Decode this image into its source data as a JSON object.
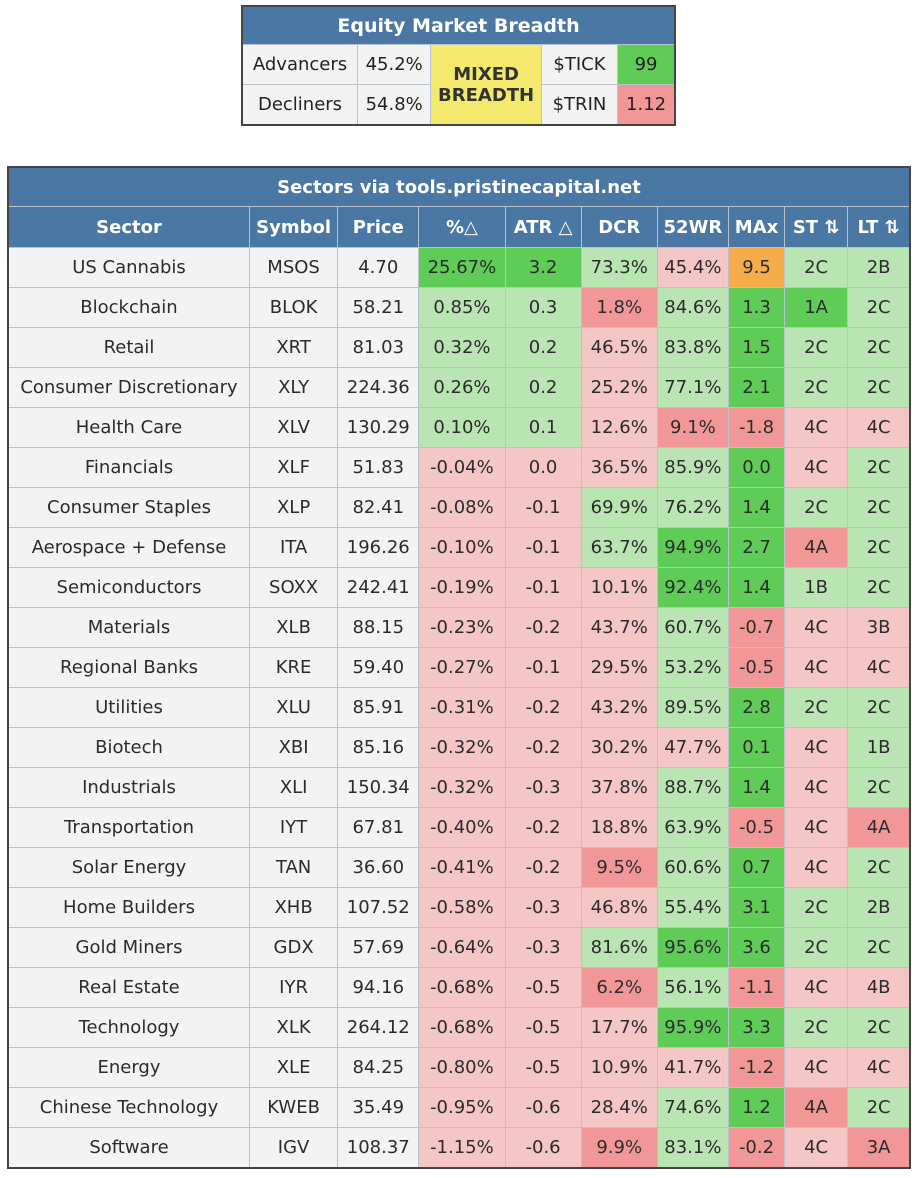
{
  "colors": {
    "header_bg": "#4a77a3",
    "header_text": "#ffffff",
    "neutral_cell": "#f3f3f3",
    "light_green": "#b9e5b3",
    "bright_green": "#5fcc58",
    "light_red": "#f4c6c6",
    "red": "#f29797",
    "orange": "#f5ad49",
    "mixed_yellow": "#f2e96e"
  },
  "breadth": {
    "title": "Equity Market Breadth",
    "advancers_label": "Advancers",
    "advancers_value": "45.2%",
    "decliners_label": "Decliners",
    "decliners_value": "54.8%",
    "badge_line1": "MIXED",
    "badge_line2": "BREADTH",
    "tick_label": "$TICK",
    "tick_value": "99",
    "tick_color": "#5fcc58",
    "trin_label": "$TRIN",
    "trin_value": "1.12",
    "trin_color": "#f29797"
  },
  "sectors": {
    "title": "Sectors via tools.pristinecapital.net",
    "columns": [
      "Sector",
      "Symbol",
      "Price",
      "%△",
      "ATR △",
      "DCR",
      "52WR",
      "MAx",
      "ST ⇅",
      "LT ⇅"
    ],
    "rows": [
      {
        "sector": "US Cannabis",
        "symbol": "MSOS",
        "price": "4.70",
        "pct": "25.67%",
        "atr": "3.2",
        "dcr": "73.3%",
        "wr52": "45.4%",
        "max": "9.5",
        "st": "2C",
        "lt": "2B",
        "c": [
          "bg",
          "bg",
          "lg",
          "lr",
          "o",
          "lg",
          "lg"
        ]
      },
      {
        "sector": "Blockchain",
        "symbol": "BLOK",
        "price": "58.21",
        "pct": "0.85%",
        "atr": "0.3",
        "dcr": "1.8%",
        "wr52": "84.6%",
        "max": "1.3",
        "st": "1A",
        "lt": "2C",
        "c": [
          "lg",
          "lg",
          "r",
          "lg",
          "bg",
          "bg",
          "lg"
        ]
      },
      {
        "sector": "Retail",
        "symbol": "XRT",
        "price": "81.03",
        "pct": "0.32%",
        "atr": "0.2",
        "dcr": "46.5%",
        "wr52": "83.8%",
        "max": "1.5",
        "st": "2C",
        "lt": "2C",
        "c": [
          "lg",
          "lg",
          "lr",
          "lg",
          "bg",
          "lg",
          "lg"
        ]
      },
      {
        "sector": "Consumer Discretionary",
        "symbol": "XLY",
        "price": "224.36",
        "pct": "0.26%",
        "atr": "0.2",
        "dcr": "25.2%",
        "wr52": "77.1%",
        "max": "2.1",
        "st": "2C",
        "lt": "2C",
        "c": [
          "lg",
          "lg",
          "lr",
          "lg",
          "bg",
          "lg",
          "lg"
        ]
      },
      {
        "sector": "Health Care",
        "symbol": "XLV",
        "price": "130.29",
        "pct": "0.10%",
        "atr": "0.1",
        "dcr": "12.6%",
        "wr52": "9.1%",
        "max": "-1.8",
        "st": "4C",
        "lt": "4C",
        "c": [
          "lg",
          "lg",
          "lr",
          "r",
          "r",
          "lr",
          "lr"
        ]
      },
      {
        "sector": "Financials",
        "symbol": "XLF",
        "price": "51.83",
        "pct": "-0.04%",
        "atr": "0.0",
        "dcr": "36.5%",
        "wr52": "85.9%",
        "max": "0.0",
        "st": "4C",
        "lt": "2C",
        "c": [
          "lr",
          "lr",
          "lr",
          "lg",
          "bg",
          "lr",
          "lg"
        ]
      },
      {
        "sector": "Consumer Staples",
        "symbol": "XLP",
        "price": "82.41",
        "pct": "-0.08%",
        "atr": "-0.1",
        "dcr": "69.9%",
        "wr52": "76.2%",
        "max": "1.4",
        "st": "2C",
        "lt": "2C",
        "c": [
          "lr",
          "lr",
          "lg",
          "lg",
          "bg",
          "lg",
          "lg"
        ]
      },
      {
        "sector": "Aerospace + Defense",
        "symbol": "ITA",
        "price": "196.26",
        "pct": "-0.10%",
        "atr": "-0.1",
        "dcr": "63.7%",
        "wr52": "94.9%",
        "max": "2.7",
        "st": "4A",
        "lt": "2C",
        "c": [
          "lr",
          "lr",
          "lg",
          "bg",
          "bg",
          "r",
          "lg"
        ]
      },
      {
        "sector": "Semiconductors",
        "symbol": "SOXX",
        "price": "242.41",
        "pct": "-0.19%",
        "atr": "-0.1",
        "dcr": "10.1%",
        "wr52": "92.4%",
        "max": "1.4",
        "st": "1B",
        "lt": "2C",
        "c": [
          "lr",
          "lr",
          "lr",
          "bg",
          "bg",
          "lg",
          "lg"
        ]
      },
      {
        "sector": "Materials",
        "symbol": "XLB",
        "price": "88.15",
        "pct": "-0.23%",
        "atr": "-0.2",
        "dcr": "43.7%",
        "wr52": "60.7%",
        "max": "-0.7",
        "st": "4C",
        "lt": "3B",
        "c": [
          "lr",
          "lr",
          "lr",
          "lg",
          "r",
          "lr",
          "lr"
        ]
      },
      {
        "sector": "Regional Banks",
        "symbol": "KRE",
        "price": "59.40",
        "pct": "-0.27%",
        "atr": "-0.1",
        "dcr": "29.5%",
        "wr52": "53.2%",
        "max": "-0.5",
        "st": "4C",
        "lt": "4C",
        "c": [
          "lr",
          "lr",
          "lr",
          "lg",
          "r",
          "lr",
          "lr"
        ]
      },
      {
        "sector": "Utilities",
        "symbol": "XLU",
        "price": "85.91",
        "pct": "-0.31%",
        "atr": "-0.2",
        "dcr": "43.2%",
        "wr52": "89.5%",
        "max": "2.8",
        "st": "2C",
        "lt": "2C",
        "c": [
          "lr",
          "lr",
          "lr",
          "lg",
          "bg",
          "lg",
          "lg"
        ]
      },
      {
        "sector": "Biotech",
        "symbol": "XBI",
        "price": "85.16",
        "pct": "-0.32%",
        "atr": "-0.2",
        "dcr": "30.2%",
        "wr52": "47.7%",
        "max": "0.1",
        "st": "4C",
        "lt": "1B",
        "c": [
          "lr",
          "lr",
          "lr",
          "lr",
          "bg",
          "lr",
          "lg"
        ]
      },
      {
        "sector": "Industrials",
        "symbol": "XLI",
        "price": "150.34",
        "pct": "-0.32%",
        "atr": "-0.3",
        "dcr": "37.8%",
        "wr52": "88.7%",
        "max": "1.4",
        "st": "4C",
        "lt": "2C",
        "c": [
          "lr",
          "lr",
          "lr",
          "lg",
          "bg",
          "lr",
          "lg"
        ]
      },
      {
        "sector": "Transportation",
        "symbol": "IYT",
        "price": "67.81",
        "pct": "-0.40%",
        "atr": "-0.2",
        "dcr": "18.8%",
        "wr52": "63.9%",
        "max": "-0.5",
        "st": "4C",
        "lt": "4A",
        "c": [
          "lr",
          "lr",
          "lr",
          "lg",
          "r",
          "lr",
          "r"
        ]
      },
      {
        "sector": "Solar Energy",
        "symbol": "TAN",
        "price": "36.60",
        "pct": "-0.41%",
        "atr": "-0.2",
        "dcr": "9.5%",
        "wr52": "60.6%",
        "max": "0.7",
        "st": "4C",
        "lt": "2C",
        "c": [
          "lr",
          "lr",
          "r",
          "lg",
          "bg",
          "lr",
          "lg"
        ]
      },
      {
        "sector": "Home Builders",
        "symbol": "XHB",
        "price": "107.52",
        "pct": "-0.58%",
        "atr": "-0.3",
        "dcr": "46.8%",
        "wr52": "55.4%",
        "max": "3.1",
        "st": "2C",
        "lt": "2B",
        "c": [
          "lr",
          "lr",
          "lr",
          "lg",
          "bg",
          "lg",
          "lg"
        ]
      },
      {
        "sector": "Gold Miners",
        "symbol": "GDX",
        "price": "57.69",
        "pct": "-0.64%",
        "atr": "-0.3",
        "dcr": "81.6%",
        "wr52": "95.6%",
        "max": "3.6",
        "st": "2C",
        "lt": "2C",
        "c": [
          "lr",
          "lr",
          "lg",
          "bg",
          "bg",
          "lg",
          "lg"
        ]
      },
      {
        "sector": "Real Estate",
        "symbol": "IYR",
        "price": "94.16",
        "pct": "-0.68%",
        "atr": "-0.5",
        "dcr": "6.2%",
        "wr52": "56.1%",
        "max": "-1.1",
        "st": "4C",
        "lt": "4B",
        "c": [
          "lr",
          "lr",
          "r",
          "lg",
          "r",
          "lr",
          "lr"
        ]
      },
      {
        "sector": "Technology",
        "symbol": "XLK",
        "price": "264.12",
        "pct": "-0.68%",
        "atr": "-0.5",
        "dcr": "17.7%",
        "wr52": "95.9%",
        "max": "3.3",
        "st": "2C",
        "lt": "2C",
        "c": [
          "lr",
          "lr",
          "lr",
          "bg",
          "bg",
          "lg",
          "lg"
        ]
      },
      {
        "sector": "Energy",
        "symbol": "XLE",
        "price": "84.25",
        "pct": "-0.80%",
        "atr": "-0.5",
        "dcr": "10.9%",
        "wr52": "41.7%",
        "max": "-1.2",
        "st": "4C",
        "lt": "4C",
        "c": [
          "lr",
          "lr",
          "lr",
          "lr",
          "r",
          "lr",
          "lr"
        ]
      },
      {
        "sector": "Chinese Technology",
        "symbol": "KWEB",
        "price": "35.49",
        "pct": "-0.95%",
        "atr": "-0.6",
        "dcr": "28.4%",
        "wr52": "74.6%",
        "max": "1.2",
        "st": "4A",
        "lt": "2C",
        "c": [
          "lr",
          "lr",
          "lr",
          "lg",
          "bg",
          "r",
          "lg"
        ]
      },
      {
        "sector": "Software",
        "symbol": "IGV",
        "price": "108.37",
        "pct": "-1.15%",
        "atr": "-0.6",
        "dcr": "9.9%",
        "wr52": "83.1%",
        "max": "-0.2",
        "st": "4C",
        "lt": "3A",
        "c": [
          "lr",
          "lr",
          "r",
          "lg",
          "r",
          "lr",
          "r"
        ]
      }
    ]
  }
}
